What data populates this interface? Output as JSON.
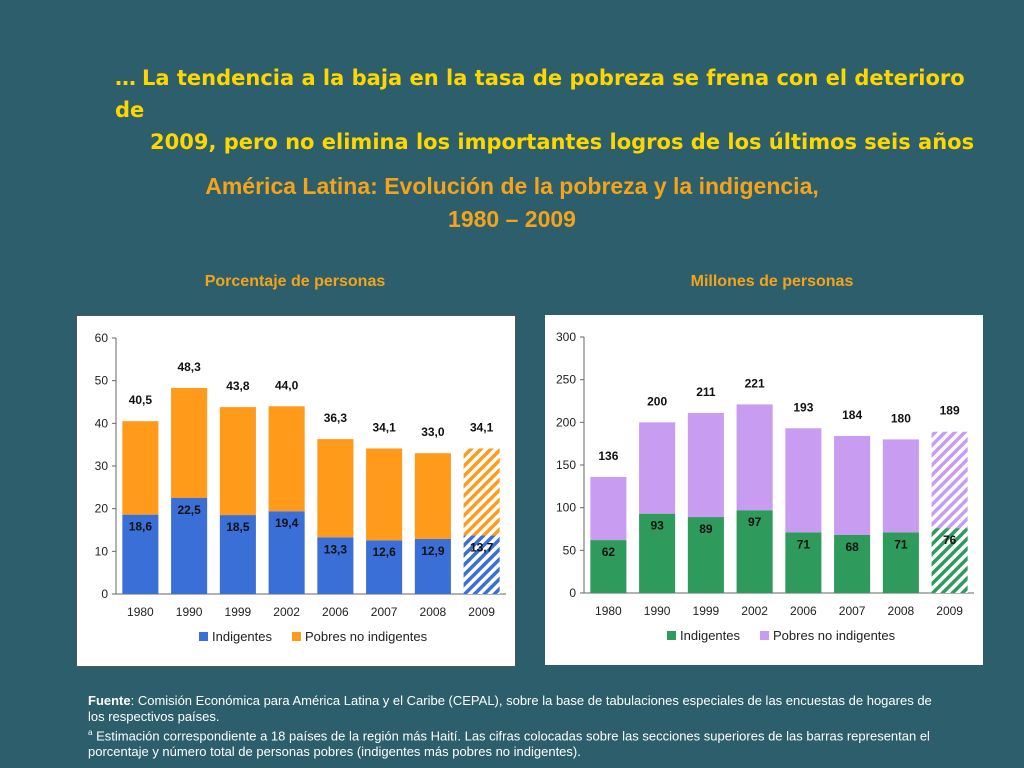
{
  "slide": {
    "title_lead": "…",
    "title_line1": "La tendencia a la baja en la tasa de pobreza se frena con el deterioro de",
    "title_line2": "2009, pero no elimina los importantes logros de los últimos seis años",
    "chart_title_line1": "América Latina: Evolución de la pobreza y la indigencia,",
    "chart_title_line2": "1980 – 2009"
  },
  "footnote": {
    "source_label": "Fuente",
    "source_text": ": Comisión Económica para América Latina y el Caribe (CEPAL), sobre la base de tabulaciones especiales de las encuestas de hogares de los respectivos países.",
    "note_marker": "a",
    "note_text": " Estimación correspondiente a 18 países de la región más Haití. Las cifras colocadas sobre las secciones superiores de las barras representan el porcentaje y número total de personas pobres (indigentes más pobres no indigentes)."
  },
  "colors": {
    "background": "#2c5f6b",
    "title": "#ffd700",
    "subtitle": "#f5a31a",
    "indigentes_pct": "#3a6fd8",
    "pobres_pct": "#ff9a1a",
    "indigentes_mill": "#2e9a5c",
    "pobres_mill": "#c89cf0"
  },
  "chart_data": [
    {
      "type": "bar",
      "stacked": true,
      "subtitle": "Porcentaje de personas",
      "categories": [
        "1980",
        "1990",
        "1999",
        "2002",
        "2006",
        "2007",
        "2008",
        "2009"
      ],
      "series": [
        {
          "name": "Indigentes",
          "values": [
            18.6,
            22.5,
            18.5,
            19.4,
            13.3,
            12.6,
            12.9,
            13.7
          ],
          "labels": [
            "18,6",
            "22,5",
            "18,5",
            "19,4",
            "13,3",
            "12,6",
            "12,9",
            "13,7"
          ]
        },
        {
          "name": "Pobres no indigentes",
          "values": [
            21.9,
            25.8,
            25.3,
            24.6,
            23.0,
            21.5,
            20.1,
            20.4
          ]
        }
      ],
      "totals": [
        40.5,
        48.3,
        43.8,
        44.0,
        36.3,
        34.1,
        33.0,
        34.1
      ],
      "total_labels": [
        "40,5",
        "48,3",
        "43,8",
        "44,0",
        "36,3",
        "34,1",
        "33,0",
        "34,1"
      ],
      "estimated_category": "2009",
      "ylim": [
        0,
        60
      ],
      "yticks": [
        "0",
        "10",
        "20",
        "30",
        "40",
        "50",
        "60"
      ],
      "ytick_values": [
        0,
        10,
        20,
        30,
        40,
        50,
        60
      ],
      "legend_position": "bottom"
    },
    {
      "type": "bar",
      "stacked": true,
      "subtitle": "Millones de personas",
      "categories": [
        "1980",
        "1990",
        "1999",
        "2002",
        "2006",
        "2007",
        "2008",
        "2009"
      ],
      "series": [
        {
          "name": "Indigentes",
          "values": [
            62,
            93,
            89,
            97,
            71,
            68,
            71,
            76
          ],
          "labels": [
            "62",
            "93",
            "89",
            "97",
            "71",
            "68",
            "71",
            "76"
          ]
        },
        {
          "name": "Pobres no indigentes",
          "values": [
            74,
            107,
            122,
            124,
            122,
            116,
            109,
            113
          ]
        }
      ],
      "totals": [
        136,
        200,
        211,
        221,
        193,
        184,
        180,
        189
      ],
      "total_labels": [
        "136",
        "200",
        "211",
        "221",
        "193",
        "184",
        "180",
        "189"
      ],
      "estimated_category": "2009",
      "ylim": [
        0,
        300
      ],
      "yticks": [
        "0",
        "50",
        "100",
        "150",
        "200",
        "250",
        "300"
      ],
      "ytick_values": [
        0,
        50,
        100,
        150,
        200,
        250,
        300
      ],
      "legend_position": "bottom"
    }
  ]
}
